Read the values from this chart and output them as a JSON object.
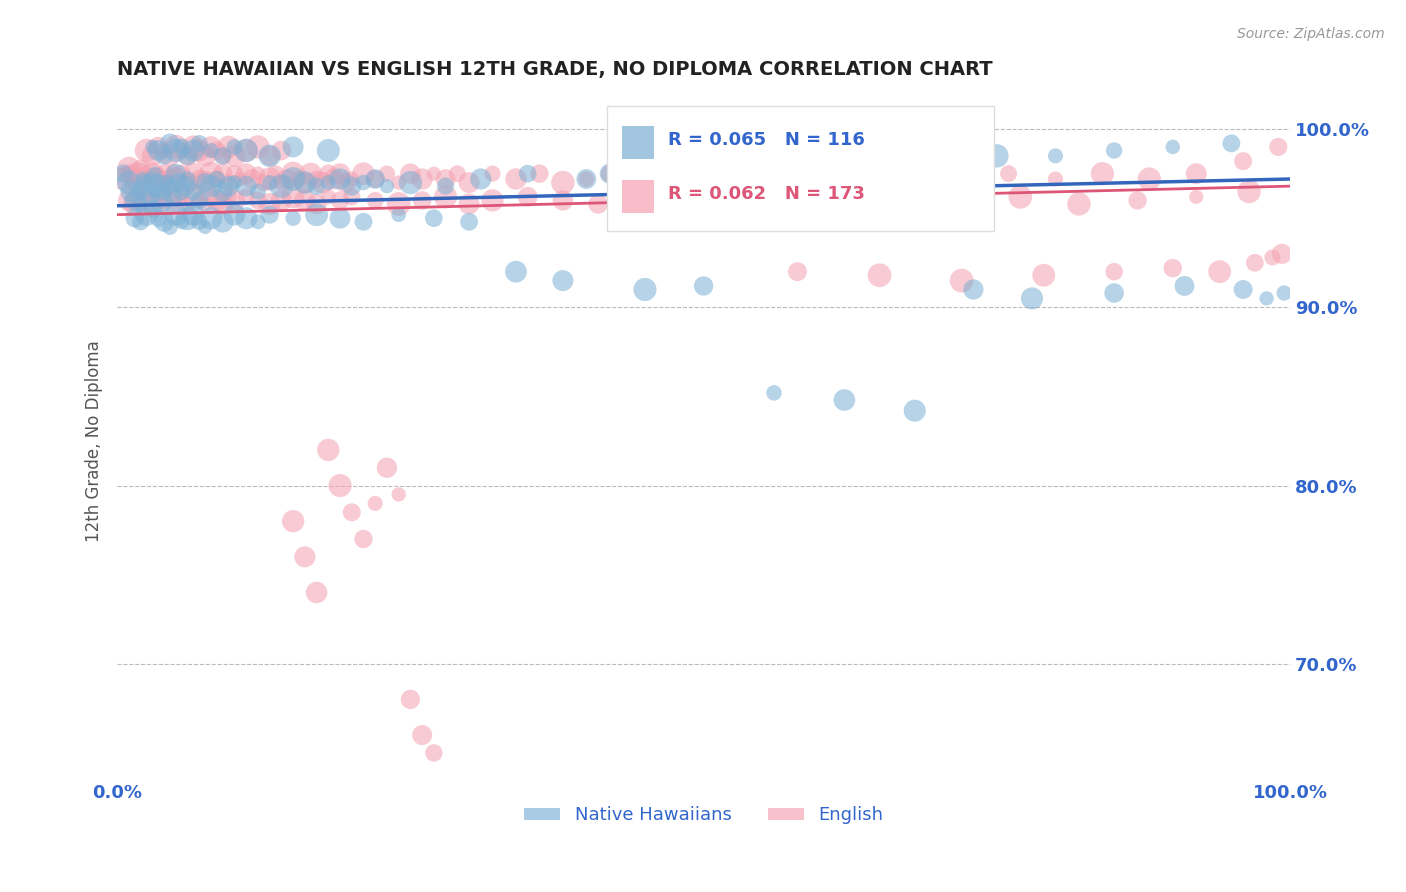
{
  "title": "NATIVE HAWAIIAN VS ENGLISH 12TH GRADE, NO DIPLOMA CORRELATION CHART",
  "source_text": "Source: ZipAtlas.com",
  "ylabel": "12th Grade, No Diploma",
  "xlim": [
    0.0,
    1.0
  ],
  "ylim": [
    0.635,
    1.015
  ],
  "ytick_labels": [
    "70.0%",
    "80.0%",
    "90.0%",
    "100.0%"
  ],
  "ytick_values": [
    0.7,
    0.8,
    0.9,
    1.0
  ],
  "legend_bottom": [
    "Native Hawaiians",
    "English"
  ],
  "blue_R": 0.065,
  "blue_N": 116,
  "pink_R": 0.062,
  "pink_N": 173,
  "blue_color": "#7BAFD4",
  "pink_color": "#F4A0B0",
  "blue_line_color": "#3366BB",
  "pink_line_color": "#DD5577",
  "title_color": "#222222",
  "axis_label_color": "#3366CC",
  "grid_color": "#bbbbbb",
  "background_color": "#ffffff",
  "blue_scatter_x": [
    0.005,
    0.01,
    0.012,
    0.015,
    0.018,
    0.02,
    0.022,
    0.025,
    0.028,
    0.03,
    0.032,
    0.035,
    0.038,
    0.04,
    0.042,
    0.045,
    0.048,
    0.05,
    0.052,
    0.055,
    0.058,
    0.06,
    0.065,
    0.07,
    0.075,
    0.08,
    0.085,
    0.09,
    0.095,
    0.1,
    0.11,
    0.12,
    0.13,
    0.14,
    0.15,
    0.16,
    0.17,
    0.18,
    0.19,
    0.2,
    0.21,
    0.22,
    0.23,
    0.25,
    0.28,
    0.31,
    0.35,
    0.4,
    0.42,
    0.45,
    0.5,
    0.55,
    0.6,
    0.65,
    0.7,
    0.75,
    0.8,
    0.85,
    0.9,
    0.95,
    0.015,
    0.02,
    0.025,
    0.03,
    0.035,
    0.04,
    0.045,
    0.05,
    0.055,
    0.06,
    0.065,
    0.07,
    0.075,
    0.08,
    0.09,
    0.1,
    0.11,
    0.12,
    0.13,
    0.15,
    0.17,
    0.19,
    0.21,
    0.24,
    0.27,
    0.3,
    0.34,
    0.38,
    0.45,
    0.5,
    0.56,
    0.62,
    0.68,
    0.73,
    0.78,
    0.85,
    0.91,
    0.96,
    0.98,
    0.995,
    0.03,
    0.035,
    0.04,
    0.045,
    0.05,
    0.055,
    0.06,
    0.065,
    0.07,
    0.08,
    0.09,
    0.1,
    0.11,
    0.13,
    0.15,
    0.18
  ],
  "blue_scatter_y": [
    0.975,
    0.97,
    0.965,
    0.96,
    0.965,
    0.958,
    0.972,
    0.968,
    0.963,
    0.97,
    0.975,
    0.968,
    0.96,
    0.965,
    0.97,
    0.968,
    0.962,
    0.975,
    0.97,
    0.965,
    0.968,
    0.972,
    0.965,
    0.96,
    0.97,
    0.968,
    0.972,
    0.965,
    0.968,
    0.97,
    0.968,
    0.965,
    0.97,
    0.968,
    0.972,
    0.97,
    0.968,
    0.97,
    0.972,
    0.968,
    0.97,
    0.972,
    0.968,
    0.97,
    0.968,
    0.972,
    0.975,
    0.972,
    0.975,
    0.978,
    0.978,
    0.978,
    0.98,
    0.982,
    0.98,
    0.985,
    0.985,
    0.988,
    0.99,
    0.992,
    0.95,
    0.948,
    0.952,
    0.955,
    0.95,
    0.948,
    0.945,
    0.952,
    0.948,
    0.95,
    0.952,
    0.948,
    0.945,
    0.95,
    0.948,
    0.952,
    0.95,
    0.948,
    0.952,
    0.95,
    0.952,
    0.95,
    0.948,
    0.952,
    0.95,
    0.948,
    0.92,
    0.915,
    0.91,
    0.912,
    0.852,
    0.848,
    0.842,
    0.91,
    0.905,
    0.908,
    0.912,
    0.91,
    0.905,
    0.908,
    0.99,
    0.988,
    0.985,
    0.992,
    0.988,
    0.99,
    0.985,
    0.988,
    0.992,
    0.988,
    0.985,
    0.99,
    0.988,
    0.985,
    0.99,
    0.988
  ],
  "pink_scatter_x": [
    0.005,
    0.008,
    0.01,
    0.012,
    0.015,
    0.018,
    0.02,
    0.022,
    0.025,
    0.028,
    0.03,
    0.032,
    0.035,
    0.038,
    0.04,
    0.042,
    0.045,
    0.048,
    0.05,
    0.055,
    0.06,
    0.065,
    0.07,
    0.075,
    0.08,
    0.085,
    0.09,
    0.095,
    0.1,
    0.105,
    0.11,
    0.115,
    0.12,
    0.125,
    0.13,
    0.135,
    0.14,
    0.145,
    0.15,
    0.155,
    0.16,
    0.165,
    0.17,
    0.175,
    0.18,
    0.185,
    0.19,
    0.195,
    0.2,
    0.21,
    0.22,
    0.23,
    0.24,
    0.25,
    0.26,
    0.27,
    0.28,
    0.29,
    0.3,
    0.32,
    0.34,
    0.36,
    0.38,
    0.4,
    0.42,
    0.45,
    0.48,
    0.52,
    0.56,
    0.6,
    0.64,
    0.68,
    0.72,
    0.76,
    0.8,
    0.84,
    0.88,
    0.92,
    0.96,
    0.99,
    0.01,
    0.015,
    0.02,
    0.025,
    0.03,
    0.035,
    0.04,
    0.045,
    0.05,
    0.055,
    0.06,
    0.065,
    0.07,
    0.075,
    0.08,
    0.085,
    0.09,
    0.095,
    0.1,
    0.11,
    0.12,
    0.13,
    0.14,
    0.15,
    0.16,
    0.17,
    0.18,
    0.19,
    0.2,
    0.22,
    0.24,
    0.26,
    0.28,
    0.3,
    0.32,
    0.35,
    0.38,
    0.41,
    0.45,
    0.49,
    0.53,
    0.57,
    0.62,
    0.67,
    0.72,
    0.77,
    0.82,
    0.87,
    0.92,
    0.965,
    0.58,
    0.65,
    0.72,
    0.79,
    0.85,
    0.9,
    0.94,
    0.97,
    0.985,
    0.993,
    0.025,
    0.03,
    0.035,
    0.04,
    0.045,
    0.05,
    0.055,
    0.06,
    0.065,
    0.07,
    0.075,
    0.08,
    0.085,
    0.09,
    0.095,
    0.1,
    0.11,
    0.12,
    0.13,
    0.14,
    0.15,
    0.16,
    0.17,
    0.18,
    0.19,
    0.2,
    0.21,
    0.22,
    0.23,
    0.24,
    0.25,
    0.26,
    0.27
  ],
  "pink_scatter_y": [
    0.972,
    0.975,
    0.978,
    0.975,
    0.972,
    0.975,
    0.978,
    0.972,
    0.975,
    0.97,
    0.975,
    0.972,
    0.975,
    0.97,
    0.975,
    0.972,
    0.968,
    0.975,
    0.972,
    0.975,
    0.97,
    0.975,
    0.972,
    0.97,
    0.975,
    0.972,
    0.975,
    0.97,
    0.975,
    0.972,
    0.975,
    0.972,
    0.975,
    0.97,
    0.972,
    0.975,
    0.97,
    0.972,
    0.975,
    0.972,
    0.97,
    0.975,
    0.972,
    0.97,
    0.975,
    0.972,
    0.975,
    0.97,
    0.972,
    0.975,
    0.972,
    0.975,
    0.97,
    0.975,
    0.972,
    0.975,
    0.972,
    0.975,
    0.97,
    0.975,
    0.972,
    0.975,
    0.97,
    0.972,
    0.975,
    0.972,
    0.975,
    0.975,
    0.972,
    0.975,
    0.972,
    0.975,
    0.972,
    0.975,
    0.972,
    0.975,
    0.972,
    0.975,
    0.982,
    0.99,
    0.96,
    0.958,
    0.962,
    0.96,
    0.958,
    0.962,
    0.96,
    0.958,
    0.962,
    0.96,
    0.958,
    0.962,
    0.96,
    0.958,
    0.962,
    0.96,
    0.958,
    0.962,
    0.96,
    0.962,
    0.96,
    0.958,
    0.96,
    0.962,
    0.96,
    0.958,
    0.962,
    0.96,
    0.962,
    0.96,
    0.958,
    0.96,
    0.962,
    0.958,
    0.96,
    0.962,
    0.96,
    0.958,
    0.96,
    0.962,
    0.96,
    0.958,
    0.96,
    0.962,
    0.96,
    0.962,
    0.958,
    0.96,
    0.962,
    0.965,
    0.92,
    0.918,
    0.915,
    0.918,
    0.92,
    0.922,
    0.92,
    0.925,
    0.928,
    0.93,
    0.988,
    0.985,
    0.99,
    0.988,
    0.985,
    0.99,
    0.988,
    0.985,
    0.99,
    0.988,
    0.985,
    0.99,
    0.988,
    0.985,
    0.99,
    0.985,
    0.988,
    0.99,
    0.985,
    0.988,
    0.78,
    0.76,
    0.74,
    0.82,
    0.8,
    0.785,
    0.77,
    0.79,
    0.81,
    0.795,
    0.68,
    0.66,
    0.65
  ]
}
